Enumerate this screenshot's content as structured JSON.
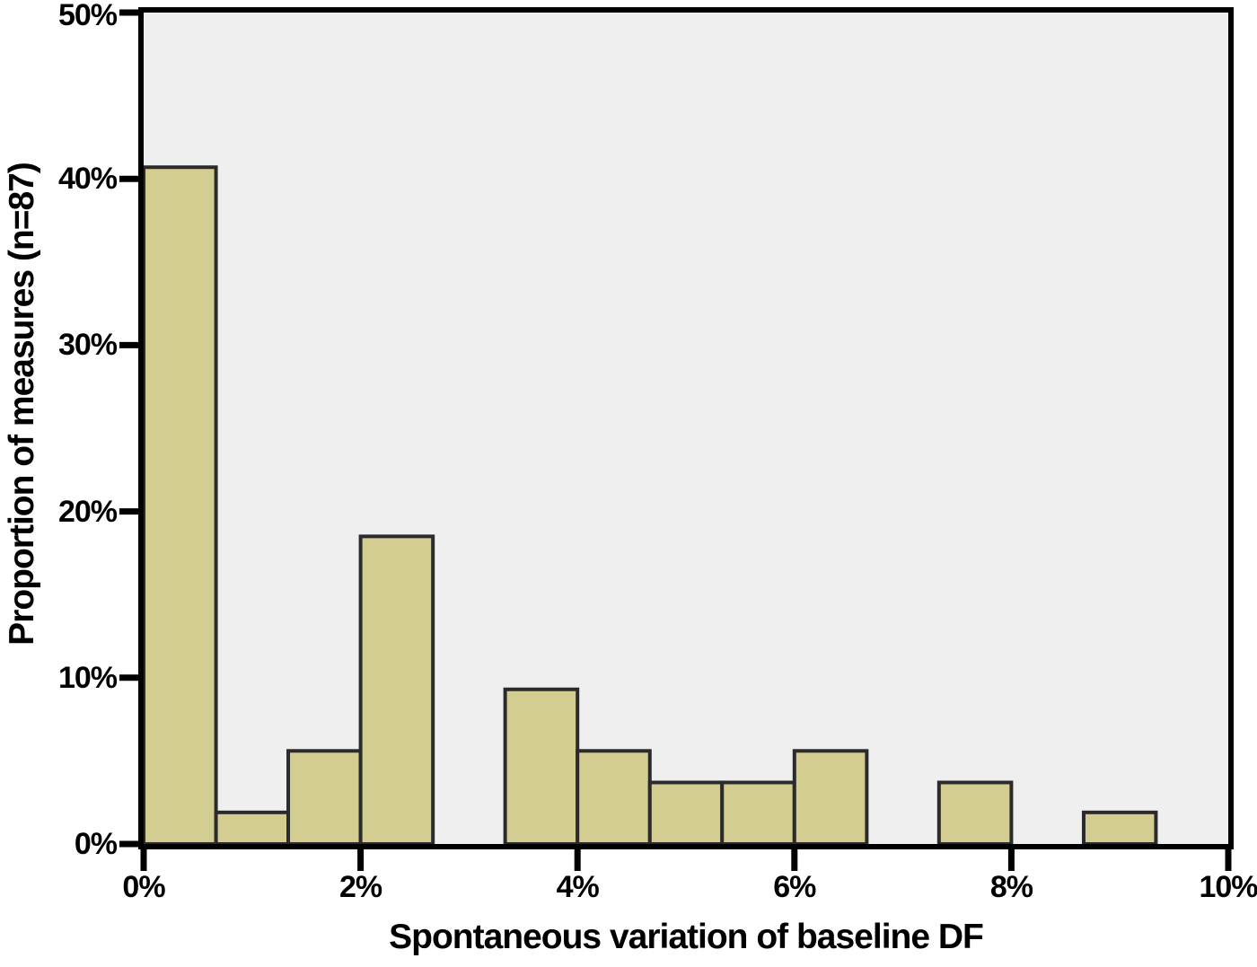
{
  "chart_data": {
    "type": "bar",
    "subtype": "histogram",
    "title": "",
    "xlabel": "Spontaneous variation of baseline DF",
    "ylabel": "Proportion of measures (n=87)",
    "xlim": [
      0,
      10
    ],
    "ylim": [
      0,
      50
    ],
    "grid": false,
    "legend": false,
    "x_ticks": [
      {
        "value": 0,
        "label": "0%"
      },
      {
        "value": 2,
        "label": "2%"
      },
      {
        "value": 4,
        "label": "4%"
      },
      {
        "value": 6,
        "label": "6%"
      },
      {
        "value": 8,
        "label": "8%"
      },
      {
        "value": 10,
        "label": "10%"
      }
    ],
    "y_ticks": [
      {
        "value": 0,
        "label": "0%"
      },
      {
        "value": 10,
        "label": "10%"
      },
      {
        "value": 20,
        "label": "20%"
      },
      {
        "value": 30,
        "label": "30%"
      },
      {
        "value": 40,
        "label": "40%"
      },
      {
        "value": 50,
        "label": "50%"
      }
    ],
    "bins": [
      {
        "start": 0,
        "end": 0.667,
        "value_pct": 40.7
      },
      {
        "start": 0.667,
        "end": 1.333,
        "value_pct": 1.9
      },
      {
        "start": 1.333,
        "end": 2,
        "value_pct": 5.6
      },
      {
        "start": 2,
        "end": 2.667,
        "value_pct": 18.5
      },
      {
        "start": 3.333,
        "end": 4,
        "value_pct": 9.3
      },
      {
        "start": 4,
        "end": 4.667,
        "value_pct": 5.6
      },
      {
        "start": 4.667,
        "end": 5.333,
        "value_pct": 3.7
      },
      {
        "start": 5.333,
        "end": 6,
        "value_pct": 3.7
      },
      {
        "start": 6,
        "end": 6.667,
        "value_pct": 5.6
      },
      {
        "start": 7.333,
        "end": 8,
        "value_pct": 3.7
      },
      {
        "start": 8.667,
        "end": 9.333,
        "value_pct": 1.9
      }
    ],
    "colors": {
      "bar_fill": "#d3cd92",
      "bar_border": "#2b2b2b",
      "plot_background": "#efefef",
      "axis": "#000000",
      "text": "#000000"
    }
  }
}
